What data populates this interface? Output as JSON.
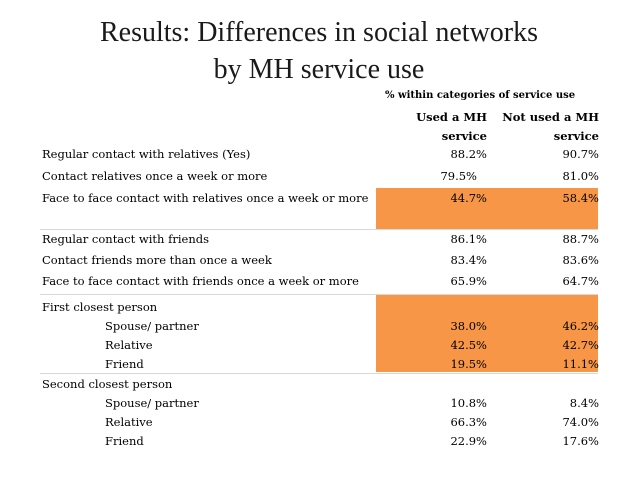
{
  "title": {
    "line1": "Results: Differences in social networks",
    "line2": "by MH service use"
  },
  "subtitle": "% within categories of service use",
  "columns": {
    "used": "Used a MH service",
    "used_l1": "Used a MH",
    "used_l2": "service",
    "not_used_l1": "Not used a MH",
    "not_used_l2": "service"
  },
  "rows": [
    {
      "label": "Regular contact with relatives (Yes)",
      "used": "88.2%",
      "not_used": "90.7%"
    },
    {
      "label": "Contact relatives once a week or more",
      "used": "79.5%",
      "not_used": "81.0%"
    },
    {
      "label": "Face to face contact with relatives once a week or more",
      "used": "44.7%",
      "not_used": "58.4%"
    },
    {
      "label": "Regular contact with friends",
      "used": "86.1%",
      "not_used": "88.7%"
    },
    {
      "label": "Contact friends more than once a week",
      "used": "83.4%",
      "not_used": "83.6%"
    },
    {
      "label": "Face to face contact with friends once a week or more",
      "used": "65.9%",
      "not_used": "64.7%"
    },
    {
      "label": "First closest person",
      "used": "",
      "not_used": ""
    },
    {
      "label": "Spouse/ partner",
      "used": "38.0%",
      "not_used": "46.2%"
    },
    {
      "label": "Relative",
      "used": "42.5%",
      "not_used": "42.7%"
    },
    {
      "label": "Friend",
      "used": "19.5%",
      "not_used": "11.1%"
    },
    {
      "label": "Second closest person",
      "used": "",
      "not_used": ""
    },
    {
      "label": "Spouse/ partner",
      "used": "10.8%",
      "not_used": "8.4%"
    },
    {
      "label": "Relative",
      "used": "66.3%",
      "not_used": "74.0%"
    },
    {
      "label": "Friend",
      "used": "22.9%",
      "not_used": "17.6%"
    }
  ],
  "colors": {
    "highlight": "#f79646"
  }
}
